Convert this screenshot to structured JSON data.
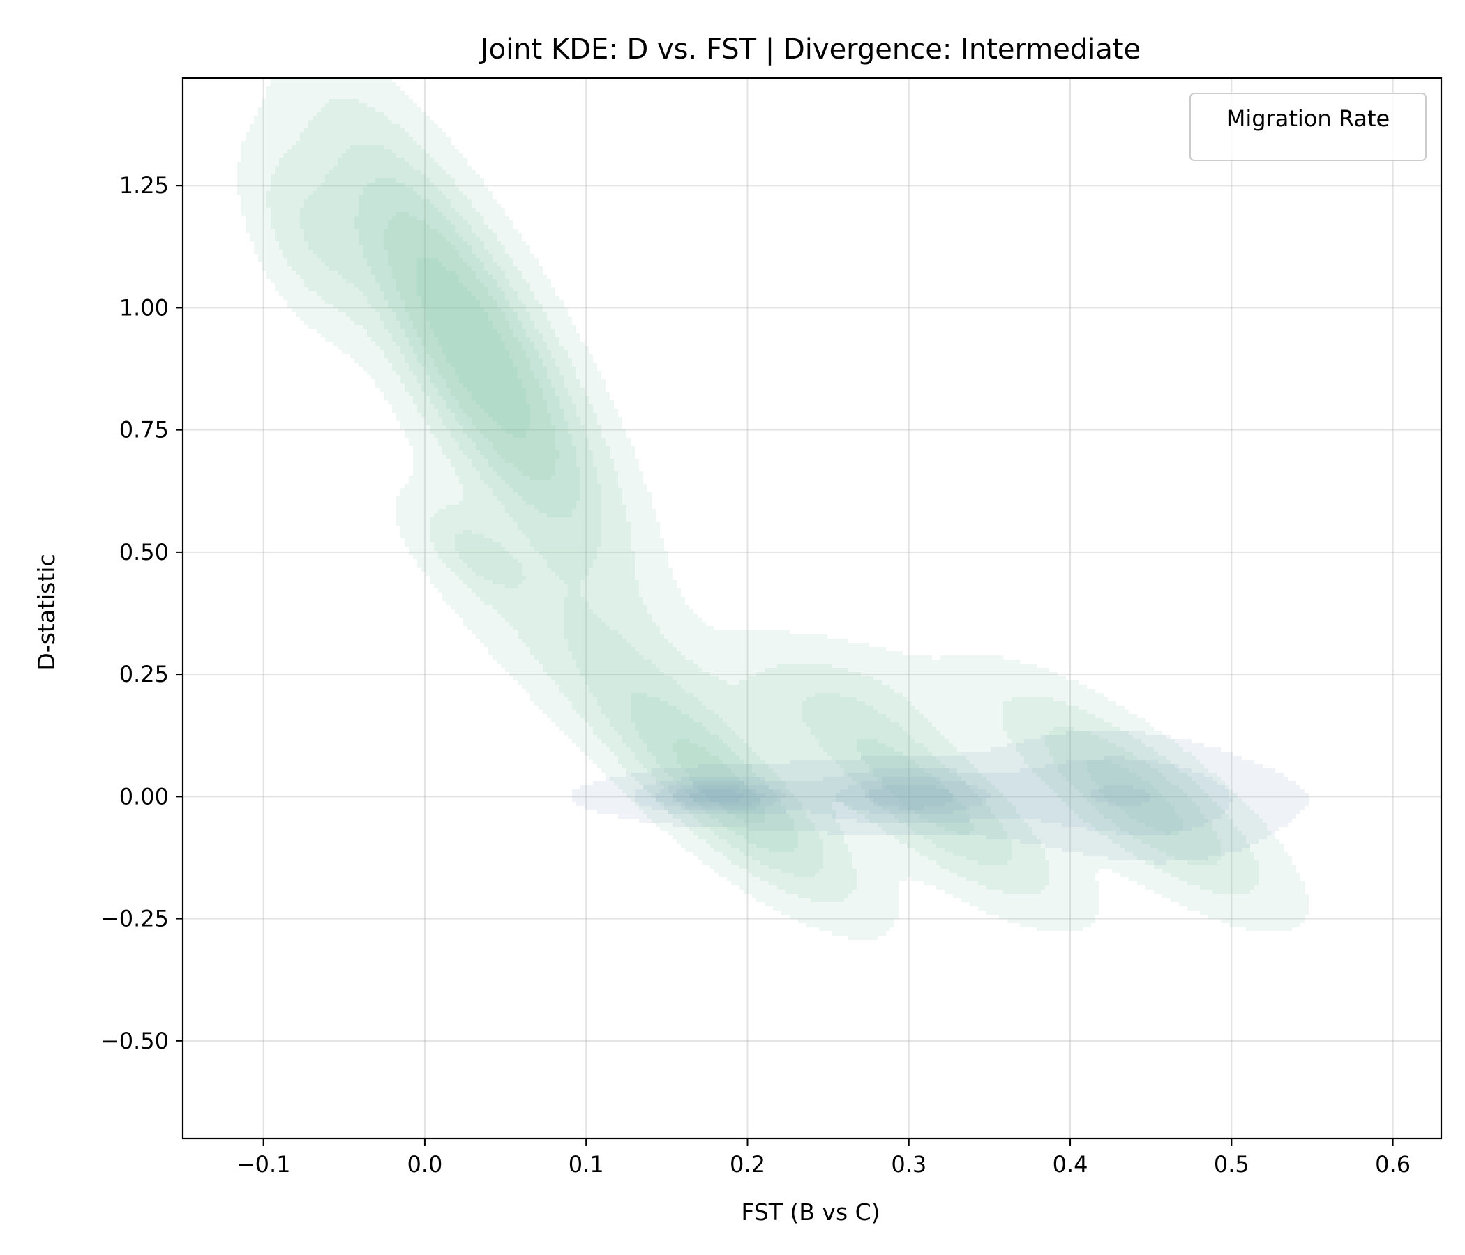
{
  "chart_data": {
    "type": "kde-contour",
    "title": "Joint KDE: D vs. FST | Divergence: Intermediate",
    "xlabel": "FST (B vs C)",
    "ylabel": "D-statistic",
    "xlim": [
      -0.15,
      0.63
    ],
    "ylim": [
      -0.7,
      1.47
    ],
    "xticks": [
      -0.1,
      0.0,
      0.1,
      0.2,
      0.3,
      0.4,
      0.5,
      0.6
    ],
    "xtick_labels": [
      "−0.1",
      "0.0",
      "0.1",
      "0.2",
      "0.3",
      "0.4",
      "0.5",
      "0.6"
    ],
    "yticks": [
      -0.5,
      -0.25,
      0.0,
      0.25,
      0.5,
      0.75,
      1.0,
      1.25
    ],
    "ytick_labels": [
      "−0.50",
      "−0.25",
      "0.00",
      "0.25",
      "0.50",
      "0.75",
      "1.00",
      "1.25"
    ],
    "grid": true,
    "legend": {
      "title": "Migration Rate",
      "placement": "top-right",
      "entries": []
    },
    "colors": {
      "green": "#7fbf9f",
      "blue": "#7f9fc0"
    },
    "series": [
      {
        "color": "#7fbf9f",
        "components": [
          {
            "mx": 0.03,
            "my": 0.92,
            "sx": 0.05,
            "sy": 0.26,
            "rho": -0.82,
            "w": 1.0
          },
          {
            "mx": -0.07,
            "my": 1.15,
            "sx": 0.025,
            "sy": 0.12,
            "rho": -0.5,
            "w": 0.25
          },
          {
            "mx": 0.03,
            "my": 0.5,
            "sx": 0.02,
            "sy": 0.06,
            "rho": -0.6,
            "w": 0.22
          },
          {
            "mx": 0.19,
            "my": 0.0,
            "sx": 0.045,
            "sy": 0.13,
            "rho": -0.8,
            "w": 0.55
          },
          {
            "mx": 0.31,
            "my": 0.0,
            "sx": 0.05,
            "sy": 0.13,
            "rho": -0.8,
            "w": 0.5
          },
          {
            "mx": 0.44,
            "my": 0.0,
            "sx": 0.05,
            "sy": 0.13,
            "rho": -0.8,
            "w": 0.5
          },
          {
            "mx": 0.12,
            "my": 0.25,
            "sx": 0.07,
            "sy": 0.2,
            "rho": -0.85,
            "w": 0.25
          },
          {
            "mx": 0.26,
            "my": 0.2,
            "sx": 0.05,
            "sy": 0.08,
            "rho": -0.3,
            "w": 0.15
          }
        ]
      },
      {
        "color": "#7f9fc0",
        "components": [
          {
            "mx": 0.18,
            "my": 0.0,
            "sx": 0.025,
            "sy": 0.02,
            "rho": 0.0,
            "w": 0.6
          },
          {
            "mx": 0.3,
            "my": 0.0,
            "sx": 0.03,
            "sy": 0.03,
            "rho": 0.0,
            "w": 0.4
          },
          {
            "mx": 0.44,
            "my": 0.0,
            "sx": 0.05,
            "sy": 0.08,
            "rho": -0.2,
            "w": 0.2
          },
          {
            "mx": 0.3,
            "my": 0.0,
            "sx": 0.14,
            "sy": 0.05,
            "rho": 0.0,
            "w": 0.15
          }
        ]
      }
    ],
    "contour_levels": [
      0.05,
      0.15,
      0.28,
      0.42,
      0.58,
      0.78
    ]
  }
}
